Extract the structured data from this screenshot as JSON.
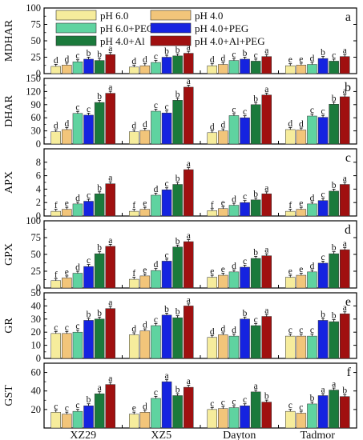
{
  "figure": {
    "groups": [
      "XZ29",
      "XZ5",
      "Dayton",
      "Tadmor"
    ],
    "legend": [
      {
        "name": "pH 6.0",
        "color": "#f6ec9c"
      },
      {
        "name": "pH 4.0",
        "color": "#f2c57a"
      },
      {
        "name": "pH 6.0+PEG",
        "color": "#5fd3a0"
      },
      {
        "name": "pH 4.0+PEG",
        "color": "#1523e0"
      },
      {
        "name": "pH 4.0+Al",
        "color": "#1b7a3c"
      },
      {
        "name": "pH 4.0+Al+PEG",
        "color": "#a01010"
      }
    ]
  },
  "chart_data": [
    {
      "type": "bar",
      "panel_letter": "a",
      "ylabel": "MDHAR",
      "categories": [
        "XZ29",
        "XZ5",
        "Dayton",
        "Tadmor"
      ],
      "ylim": [
        0,
        100
      ],
      "yticks": [
        0,
        25,
        50,
        75,
        100
      ],
      "series": [
        {
          "name": "pH 6.0",
          "values": [
            11,
            10,
            12,
            12
          ]
        },
        {
          "name": "pH 4.0",
          "values": [
            13,
            12,
            14,
            13
          ]
        },
        {
          "name": "pH 6.0+PEG",
          "values": [
            18,
            17,
            20,
            14
          ]
        },
        {
          "name": "pH 4.0+PEG",
          "values": [
            22,
            25,
            22,
            23
          ]
        },
        {
          "name": "pH 4.0+Al",
          "values": [
            20,
            27,
            19,
            19
          ]
        },
        {
          "name": "pH 4.0+Al+PEG",
          "values": [
            29,
            31,
            26,
            26
          ]
        }
      ],
      "letters": [
        [
          "d",
          "d",
          "c",
          "b",
          "b",
          "a"
        ],
        [
          "d",
          "d",
          "c",
          "b",
          "b",
          "a"
        ],
        [
          "d",
          "d",
          "c",
          "b",
          "c",
          "a"
        ],
        [
          "e",
          "e",
          "d",
          "b",
          "c",
          "a"
        ]
      ]
    },
    {
      "type": "bar",
      "panel_letter": "b",
      "ylabel": "DHAR",
      "categories": [
        "XZ29",
        "XZ5",
        "Dayton",
        "Tadmor"
      ],
      "ylim": [
        0,
        150
      ],
      "yticks": [
        0,
        30,
        60,
        90,
        120,
        150
      ],
      "series": [
        {
          "name": "pH 6.0",
          "values": [
            28,
            28,
            26,
            33
          ]
        },
        {
          "name": "pH 4.0",
          "values": [
            33,
            31,
            30,
            32
          ]
        },
        {
          "name": "pH 6.0+PEG",
          "values": [
            70,
            75,
            65,
            64
          ]
        },
        {
          "name": "pH 4.0+PEG",
          "values": [
            66,
            71,
            60,
            61
          ]
        },
        {
          "name": "pH 4.0+Al",
          "values": [
            95,
            100,
            90,
            91
          ]
        },
        {
          "name": "pH 4.0+Al+PEG",
          "values": [
            116,
            130,
            112,
            108
          ]
        }
      ],
      "letters": [
        [
          "d",
          "d",
          "c",
          "c",
          "b",
          "a"
        ],
        [
          "d",
          "d",
          "c",
          "c",
          "b",
          "a"
        ],
        [
          "d",
          "d",
          "c",
          "c",
          "b",
          "a"
        ],
        [
          "d",
          "d",
          "c",
          "c",
          "b",
          "a"
        ]
      ]
    },
    {
      "type": "bar",
      "panel_letter": "c",
      "ylabel": "APX",
      "categories": [
        "XZ29",
        "XZ5",
        "Dayton",
        "Tadmor"
      ],
      "ylim": [
        0,
        10
      ],
      "yticks": [
        0,
        2,
        4,
        6,
        8
      ],
      "series": [
        {
          "name": "pH 6.0",
          "values": [
            0.7,
            0.7,
            0.8,
            0.7
          ]
        },
        {
          "name": "pH 4.0",
          "values": [
            1.0,
            1.0,
            1.1,
            1.0
          ]
        },
        {
          "name": "pH 6.0+PEG",
          "values": [
            1.8,
            3.1,
            1.6,
            1.8
          ]
        },
        {
          "name": "pH 4.0+PEG",
          "values": [
            2.2,
            3.9,
            2.0,
            2.3
          ]
        },
        {
          "name": "pH 4.0+Al",
          "values": [
            3.3,
            4.7,
            2.4,
            3.7
          ]
        },
        {
          "name": "pH 4.0+Al+PEG",
          "values": [
            4.8,
            6.9,
            3.3,
            4.7
          ]
        }
      ],
      "letters": [
        [
          "f",
          "e",
          "d",
          "c",
          "b",
          "a"
        ],
        [
          "f",
          "e",
          "d",
          "c",
          "b",
          "a"
        ],
        [
          "f",
          "e",
          "d",
          "c",
          "b",
          "a"
        ],
        [
          "f",
          "e",
          "d",
          "c",
          "b",
          "a"
        ]
      ]
    },
    {
      "type": "bar",
      "panel_letter": "d",
      "ylabel": "GPX",
      "categories": [
        "XZ29",
        "XZ5",
        "Dayton",
        "Tadmor"
      ],
      "ylim": [
        0,
        100
      ],
      "yticks": [
        0,
        25,
        50,
        75,
        100
      ],
      "series": [
        {
          "name": "pH 6.0",
          "values": [
            11,
            13,
            16,
            16
          ]
        },
        {
          "name": "pH 4.0",
          "values": [
            15,
            18,
            19,
            19
          ]
        },
        {
          "name": "pH 6.0+PEG",
          "values": [
            22,
            26,
            24,
            24
          ]
        },
        {
          "name": "pH 4.0+PEG",
          "values": [
            32,
            40,
            31,
            37
          ]
        },
        {
          "name": "pH 4.0+Al",
          "values": [
            51,
            61,
            44,
            51
          ]
        },
        {
          "name": "pH 4.0+Al+PEG",
          "values": [
            62,
            69,
            48,
            57
          ]
        }
      ],
      "letters": [
        [
          "f",
          "e",
          "d",
          "c",
          "b",
          "a"
        ],
        [
          "f",
          "e",
          "d",
          "c",
          "b",
          "a"
        ],
        [
          "e",
          "e",
          "d",
          "c",
          "b",
          "a"
        ],
        [
          "e",
          "e",
          "d",
          "c",
          "b",
          "a"
        ]
      ]
    },
    {
      "type": "bar",
      "panel_letter": "e",
      "ylabel": "GR",
      "categories": [
        "XZ29",
        "XZ5",
        "Dayton",
        "Tadmor"
      ],
      "ylim": [
        0,
        50
      ],
      "yticks": [
        0,
        10,
        20,
        30,
        40,
        50
      ],
      "series": [
        {
          "name": "pH 6.0",
          "values": [
            19,
            18,
            16,
            17
          ]
        },
        {
          "name": "pH 4.0",
          "values": [
            19,
            21,
            18,
            17
          ]
        },
        {
          "name": "pH 6.0+PEG",
          "values": [
            20,
            25,
            17,
            17
          ]
        },
        {
          "name": "pH 4.0+PEG",
          "values": [
            29,
            33,
            30,
            29
          ]
        },
        {
          "name": "pH 4.0+Al",
          "values": [
            30,
            31,
            25,
            28
          ]
        },
        {
          "name": "pH 4.0+Al+PEG",
          "values": [
            38,
            40,
            32,
            34
          ]
        }
      ],
      "letters": [
        [
          "c",
          "c",
          "c",
          "b",
          "b",
          "a"
        ],
        [
          "d",
          "d",
          "c",
          "b",
          "b",
          "a"
        ],
        [
          "d",
          "d",
          "d",
          "b",
          "c",
          "a"
        ],
        [
          "c",
          "c",
          "c",
          "b",
          "b",
          "a"
        ]
      ]
    },
    {
      "type": "bar",
      "panel_letter": "f",
      "ylabel": "GST",
      "categories": [
        "XZ29",
        "XZ5",
        "Dayton",
        "Tadmor"
      ],
      "ylim": [
        0,
        70
      ],
      "yticks": [
        20,
        40,
        60
      ],
      "series": [
        {
          "name": "pH 6.0",
          "values": [
            17,
            15,
            20,
            18
          ]
        },
        {
          "name": "pH 4.0",
          "values": [
            15,
            17,
            21,
            16
          ]
        },
        {
          "name": "pH 6.0+PEG",
          "values": [
            18,
            32,
            22,
            26
          ]
        },
        {
          "name": "pH 4.0+PEG",
          "values": [
            24,
            50,
            24,
            35
          ]
        },
        {
          "name": "pH 4.0+Al",
          "values": [
            37,
            35,
            39,
            41
          ]
        },
        {
          "name": "pH 4.0+Al+PEG",
          "values": [
            47,
            44,
            28,
            34
          ]
        }
      ],
      "letters": [
        [
          "c",
          "c",
          "c",
          "b",
          "a",
          "a"
        ],
        [
          "e",
          "d",
          "c",
          "a",
          "b",
          "a"
        ],
        [
          "c",
          "c",
          "c",
          "c",
          "a",
          "b"
        ],
        [
          "c",
          "c",
          "b",
          "a",
          "a",
          "b"
        ]
      ]
    }
  ]
}
